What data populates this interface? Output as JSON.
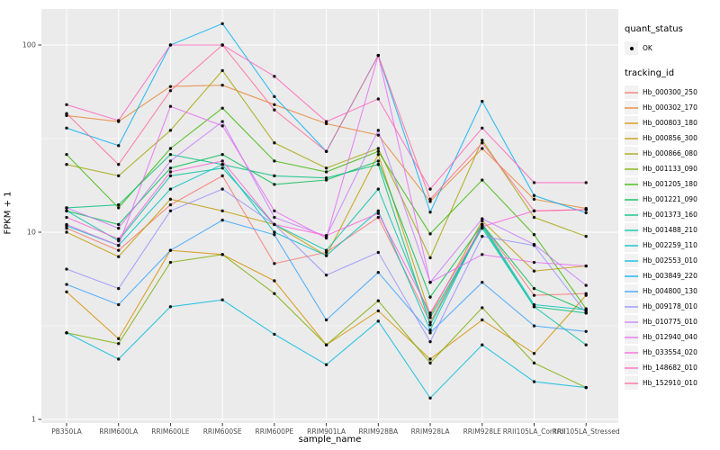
{
  "figure": {
    "background": "#FFFFFF",
    "panel_background": "#EBEBEB",
    "gridline_color": "#FFFFFF",
    "axis_text_color": "#4D4D4D",
    "tick_color": "#333333",
    "point_color": "#000000"
  },
  "chart_data": {
    "type": "line",
    "title": "",
    "xlabel": "sample_name",
    "ylabel": "FPKM + 1",
    "y_scale": "log10",
    "ylim": [
      0.96,
      155
    ],
    "y_tick_values": [
      1,
      10,
      100
    ],
    "y_tick_labels": [
      "1",
      "10",
      "100"
    ],
    "y_minor_gridlines": [
      3.162,
      31.62
    ],
    "grid": true,
    "legend_position": "right",
    "x_categories": [
      "PB350LA",
      "RRIM600LA",
      "RRIM600LE",
      "RRIM600SE",
      "RRIM600PE",
      "RRIM901LA",
      "RRIM928BA",
      "RRIM928LA",
      "RRIM928LE",
      "RRII105LA_Control",
      "RRII105LA_Stressed"
    ],
    "legends": {
      "quant_status": {
        "title": "quant_status",
        "items": [
          {
            "label": "OK",
            "marker": "point"
          }
        ]
      },
      "tracking_id": {
        "title": "tracking_id"
      }
    },
    "series": [
      {
        "name": "Hb_000300_250",
        "color": "#F8766D",
        "values": [
          10.5,
          8.0,
          14,
          20,
          6.8,
          7.8,
          12,
          3.3,
          11,
          4.6,
          4.7
        ]
      },
      {
        "name": "Hb_000302_170",
        "color": "#EA8331",
        "values": [
          42,
          39,
          60,
          61,
          48,
          38,
          33,
          14.6,
          28,
          15,
          13.4
        ]
      },
      {
        "name": "Hb_000803_180",
        "color": "#D89000",
        "values": [
          4.8,
          2.7,
          8.0,
          7.6,
          5.5,
          2.5,
          3.8,
          2.1,
          3.4,
          2.25,
          4.6
        ]
      },
      {
        "name": "Hb_000856_300",
        "color": "#C09B00",
        "values": [
          10,
          7.4,
          15,
          13,
          11,
          7.5,
          26,
          3.6,
          11.5,
          6.2,
          6.6
        ]
      },
      {
        "name": "Hb_000866_080",
        "color": "#A3A500",
        "values": [
          23,
          20,
          35,
          73,
          30,
          22,
          28,
          7.3,
          31,
          12,
          9.5
        ]
      },
      {
        "name": "Hb_001133_090",
        "color": "#7CAE00",
        "values": [
          2.9,
          2.54,
          6.9,
          7.6,
          4.7,
          2.5,
          4.3,
          2.0,
          3.95,
          2.0,
          1.48
        ]
      },
      {
        "name": "Hb_001205_180",
        "color": "#39B600",
        "values": [
          26,
          13.5,
          28,
          46,
          24,
          21,
          27,
          9.8,
          19,
          9.7,
          3.9
        ]
      },
      {
        "name": "Hb_001221_090",
        "color": "#00BB4E",
        "values": [
          13,
          11,
          22,
          26,
          18,
          19,
          24,
          4.5,
          11,
          5.0,
          3.8
        ]
      },
      {
        "name": "Hb_001373_160",
        "color": "#00BF7D",
        "values": [
          13.5,
          14,
          26,
          23,
          20,
          19.5,
          23,
          3.2,
          10.8,
          4.0,
          3.7
        ]
      },
      {
        "name": "Hb_001488_210",
        "color": "#00C1A3",
        "values": [
          13,
          9.0,
          20,
          22,
          11,
          8.0,
          17,
          3.5,
          10.5,
          4.0,
          2.5
        ]
      },
      {
        "name": "Hb_002259_110",
        "color": "#00BFC4",
        "values": [
          10.8,
          8.5,
          17,
          23,
          10,
          7.5,
          13,
          3.0,
          11,
          4.1,
          3.85
        ]
      },
      {
        "name": "Hb_002553_010",
        "color": "#00BAE0",
        "values": [
          2.9,
          2.1,
          4.0,
          4.35,
          2.85,
          1.96,
          3.35,
          1.3,
          2.5,
          1.59,
          1.48
        ]
      },
      {
        "name": "Hb_003849_220",
        "color": "#00B0F6",
        "values": [
          36,
          29,
          100,
          130,
          53,
          27,
          88,
          12.8,
          50,
          15.7,
          12.7
        ]
      },
      {
        "name": "Hb_004800_130",
        "color": "#35A2FF",
        "values": [
          5.26,
          4.1,
          8.0,
          11.6,
          9.7,
          3.4,
          6.1,
          2.9,
          5.4,
          3.16,
          2.95
        ]
      },
      {
        "name": "Hb_009178_010",
        "color": "#9590FF",
        "values": [
          6.35,
          5.0,
          13,
          17,
          11,
          5.9,
          7.8,
          2.6,
          9.5,
          8.5,
          3.7
        ]
      },
      {
        "name": "Hb_010775_010",
        "color": "#C77CFF",
        "values": [
          13.5,
          10.5,
          24,
          39,
          12,
          9.5,
          35,
          5.4,
          11.8,
          8.6,
          5.2
        ]
      },
      {
        "name": "Hb_012940_040",
        "color": "#E76BF3",
        "values": [
          11,
          8.5,
          47,
          37,
          13,
          9.3,
          88,
          5.4,
          7.6,
          6.9,
          6.6
        ]
      },
      {
        "name": "Hb_033554_020",
        "color": "#FA62DB",
        "values": [
          12,
          9.2,
          21,
          24,
          11,
          9.6,
          12.6,
          3.7,
          10.7,
          13,
          13.2
        ]
      },
      {
        "name": "Hb_148682_010",
        "color": "#FF62BC",
        "values": [
          48,
          39.5,
          100,
          100,
          68,
          39,
          51.5,
          17,
          36,
          18.4,
          18.4
        ]
      },
      {
        "name": "Hb_152910_010",
        "color": "#FF6A98",
        "values": [
          43,
          23,
          57,
          100,
          45,
          27,
          88,
          15,
          30,
          13,
          13.2
        ]
      }
    ]
  }
}
